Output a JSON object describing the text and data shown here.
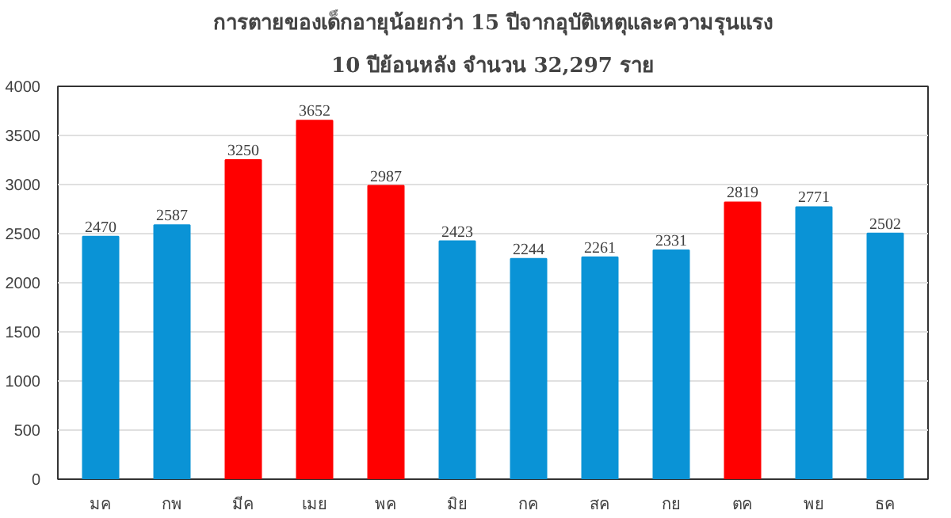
{
  "chart_data": {
    "type": "bar",
    "title": "การตายของเด็กอายุน้อยกว่า 15 ปีจากอุบัติเหตุและความรุนแรง",
    "subtitle": "10 ปีย้อนหลัง จำนวน 32,297 ราย",
    "categories": [
      "มค",
      "กพ",
      "มีค",
      "เมย",
      "พค",
      "มิย",
      "กค",
      "สค",
      "กย",
      "ตค",
      "พย",
      "ธค"
    ],
    "values": [
      2470,
      2587,
      3250,
      3652,
      2987,
      2423,
      2244,
      2261,
      2331,
      2819,
      2771,
      2502
    ],
    "colors": [
      "#0a93d6",
      "#0a93d6",
      "#ff0000",
      "#ff0000",
      "#ff0000",
      "#0a93d6",
      "#0a93d6",
      "#0a93d6",
      "#0a93d6",
      "#ff0000",
      "#0a93d6",
      "#0a93d6"
    ],
    "ylim": [
      0,
      4000
    ],
    "yticks": [
      0,
      500,
      1000,
      1500,
      2000,
      2500,
      3000,
      3500,
      4000
    ],
    "grid": "y",
    "data_labels": true
  }
}
